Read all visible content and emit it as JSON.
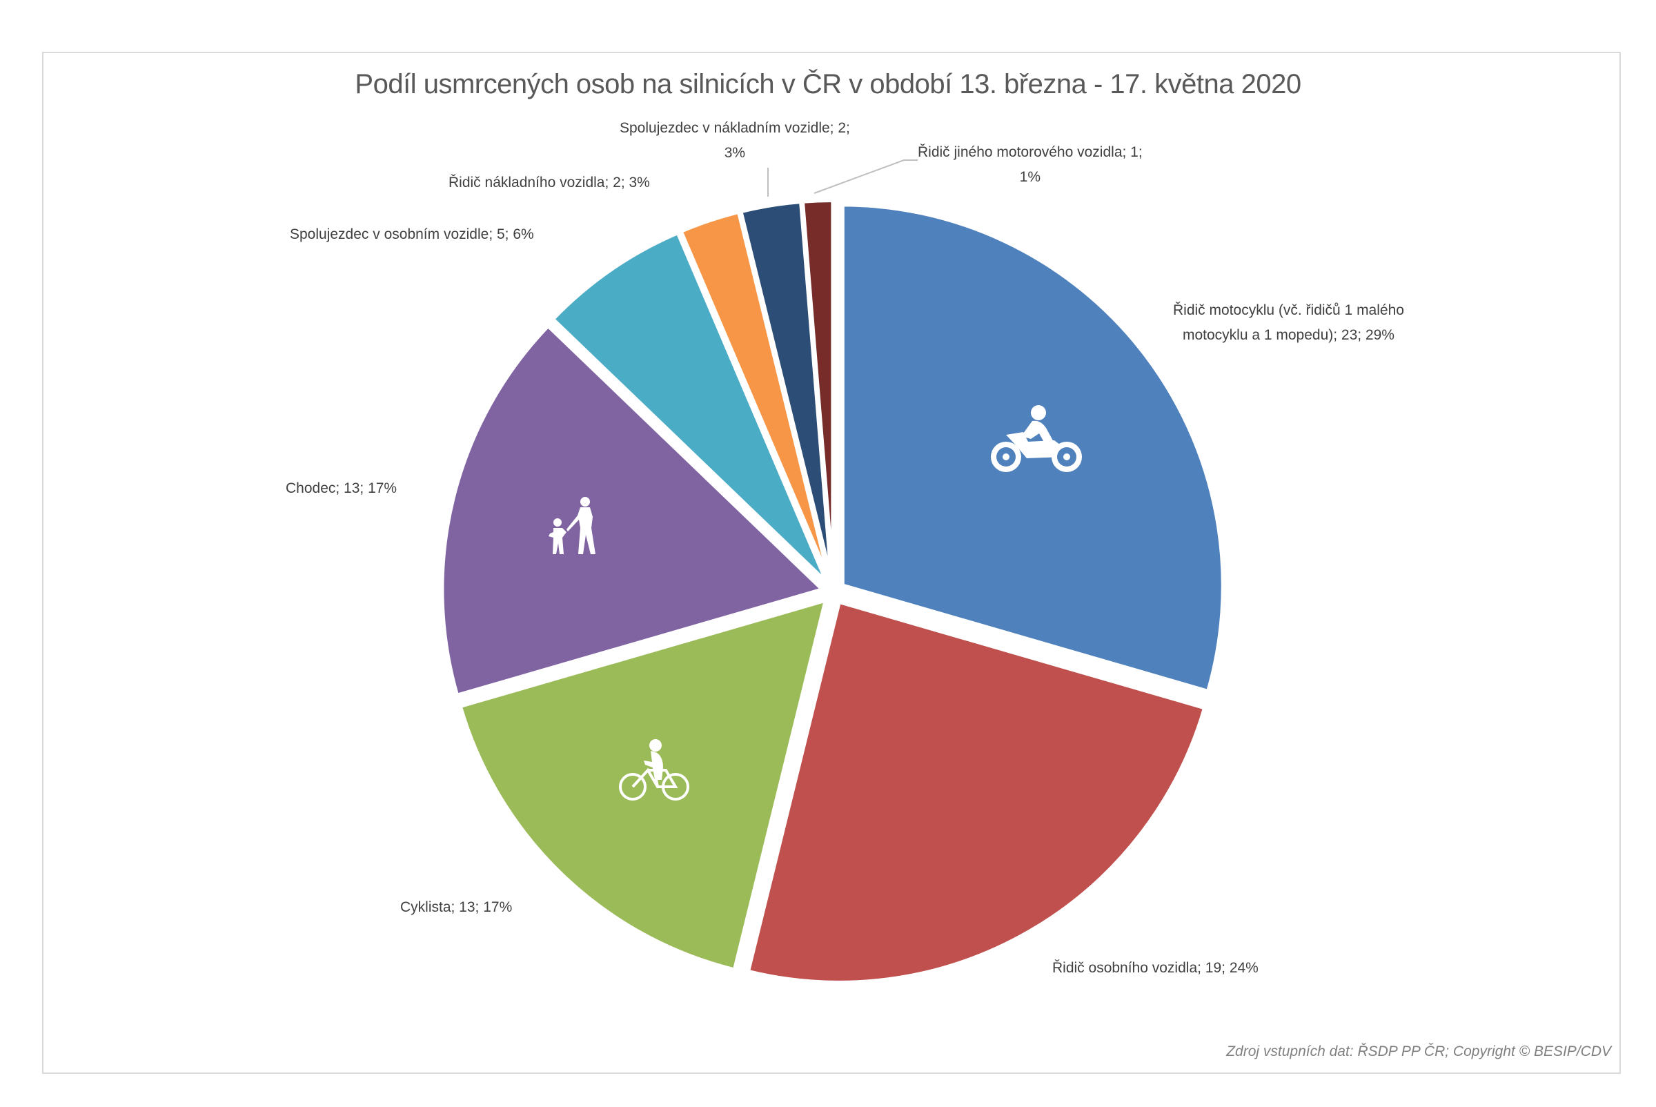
{
  "chart_data": {
    "type": "pie",
    "title": "Podíl usmrcených osob na silnicích v ČR v období 13. března - 17. května 2020",
    "exploded": true,
    "start_angle_deg": 0,
    "direction": "clockwise",
    "legend": "none (data labels with category; value; percentage)",
    "slices": [
      {
        "label": "Řidič motocyklu (vč. řidičů 1 malého motocyklu a 1 mopedu)",
        "value": 23,
        "percent": "29%",
        "color": "#4f81bd",
        "icon": "motorcycle-icon"
      },
      {
        "label": "Řidič osobního vozidla",
        "value": 19,
        "percent": "24%",
        "color": "#c0504d"
      },
      {
        "label": "Cyklista",
        "value": 13,
        "percent": "17%",
        "color": "#9bbb59",
        "icon": "bicycle-icon"
      },
      {
        "label": "Chodec",
        "value": 13,
        "percent": "17%",
        "color": "#8064a2",
        "icon": "pedestrian-icon"
      },
      {
        "label": "Spolujezdec v osobním vozidle",
        "value": 5,
        "percent": "6%",
        "color": "#4bacc6"
      },
      {
        "label": "Řidič nákladního vozidla",
        "value": 2,
        "percent": "3%",
        "color": "#f79646"
      },
      {
        "label": "Spolujezdec v nákladním vozidle",
        "value": 2,
        "percent": "3%",
        "color": "#2c4d75"
      },
      {
        "label": "Řidič jiného motorového vozidla",
        "value": 1,
        "percent": "1%",
        "color": "#772c2a"
      }
    ],
    "total": 78
  },
  "labels": {
    "moto_line1": "Řidič motocyklu (vč. řidičů 1 malého",
    "moto_line2": "motocyklu a 1 mopedu); 23; 29%",
    "osobni": "Řidič osobního vozidla; 19; 24%",
    "cyklista": "Cyklista; 13; 17%",
    "chodec": "Chodec; 13; 17%",
    "spolujezdec_osobni": "Spolujezdec v osobním vozidle; 5; 6%",
    "ridic_nakladni": "Řidič nákladního vozidla; 2; 3%",
    "spolujezdec_nakladni_line1": "Spolujezdec v nákladním vozidle; 2;",
    "spolujezdec_nakladni_line2": "3%",
    "jiny_line1": "Řidič jiného motorového vozidla; 1;",
    "jiny_line2": "1%"
  },
  "source": "Zdroj vstupních dat: ŘSDP PP ČR; Copyright © BESIP/CDV"
}
